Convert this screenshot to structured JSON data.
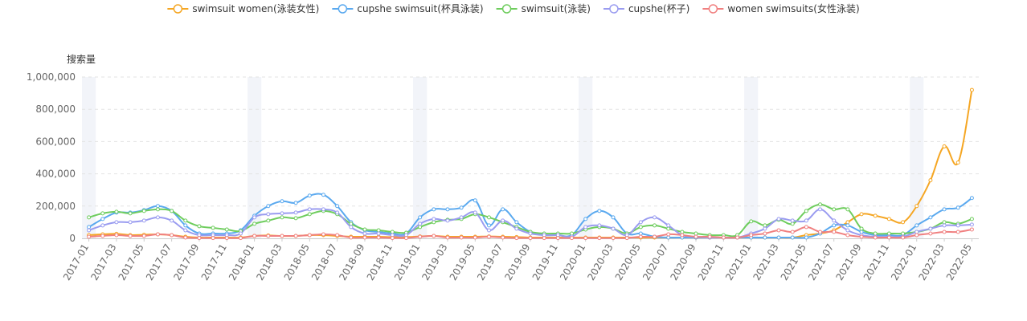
{
  "chart_data": {
    "type": "line",
    "ylabel": "搜索量",
    "ylim": [
      0,
      1000000
    ],
    "y_ticks": [
      "0",
      "200,000",
      "400,000",
      "600,000",
      "800,000",
      "1,000,000"
    ],
    "x_tick_labels": [
      "2017-01",
      "2017-03",
      "2017-05",
      "2017-07",
      "2017-09",
      "2017-11",
      "2018-01",
      "2018-03",
      "2018-05",
      "2018-07",
      "2018-09",
      "2018-11",
      "2019-01",
      "2019-03",
      "2019-05",
      "2019-07",
      "2019-09",
      "2019-11",
      "2020-01",
      "2020-03",
      "2020-05",
      "2020-07",
      "2020-09",
      "2020-11",
      "2021-01",
      "2021-03",
      "2021-05",
      "2021-07",
      "2021-09",
      "2021-11",
      "2022-01",
      "2022-03",
      "2022-05"
    ],
    "legend_position": "top-center",
    "grid": "dashed horizontal",
    "x": [
      "2017-01",
      "2017-02",
      "2017-03",
      "2017-04",
      "2017-05",
      "2017-06",
      "2017-07",
      "2017-08",
      "2017-09",
      "2017-10",
      "2017-11",
      "2017-12",
      "2018-01",
      "2018-02",
      "2018-03",
      "2018-04",
      "2018-05",
      "2018-06",
      "2018-07",
      "2018-08",
      "2018-09",
      "2018-10",
      "2018-11",
      "2018-12",
      "2019-01",
      "2019-02",
      "2019-03",
      "2019-04",
      "2019-05",
      "2019-06",
      "2019-07",
      "2019-08",
      "2019-09",
      "2019-10",
      "2019-11",
      "2019-12",
      "2020-01",
      "2020-02",
      "2020-03",
      "2020-04",
      "2020-05",
      "2020-06",
      "2020-07",
      "2020-08",
      "2020-09",
      "2020-10",
      "2020-11",
      "2020-12",
      "2021-01",
      "2021-02",
      "2021-03",
      "2021-04",
      "2021-05",
      "2021-06",
      "2021-07",
      "2021-08",
      "2021-09",
      "2021-10",
      "2021-11",
      "2021-12",
      "2022-01",
      "2022-02",
      "2022-03",
      "2022-04",
      "2022-05"
    ],
    "series": [
      {
        "name": "swimsuit women(泳装女性)",
        "color": "#f5a623",
        "values": [
          20000,
          25000,
          28000,
          20000,
          22000,
          25000,
          20000,
          10000,
          5000,
          5000,
          5000,
          5000,
          15000,
          18000,
          15000,
          15000,
          20000,
          20000,
          15000,
          10000,
          10000,
          10000,
          8000,
          8000,
          12000,
          15000,
          10000,
          10000,
          10000,
          12000,
          10000,
          8000,
          5000,
          5000,
          5000,
          5000,
          5000,
          5000,
          5000,
          5000,
          5000,
          5000,
          5000,
          5000,
          5000,
          5000,
          5000,
          5000,
          5000,
          5000,
          5000,
          5000,
          20000,
          30000,
          50000,
          100000,
          150000,
          140000,
          120000,
          100000,
          200000,
          360000,
          570000,
          470000,
          920000
        ]
      },
      {
        "name": "cupshe swimsuit(杯具泳装)",
        "color": "#5aa9ef",
        "values": [
          70000,
          120000,
          160000,
          160000,
          175000,
          200000,
          170000,
          80000,
          30000,
          30000,
          30000,
          50000,
          140000,
          200000,
          230000,
          220000,
          265000,
          270000,
          200000,
          100000,
          50000,
          40000,
          30000,
          30000,
          130000,
          180000,
          180000,
          190000,
          235000,
          80000,
          180000,
          100000,
          40000,
          20000,
          20000,
          20000,
          120000,
          170000,
          130000,
          30000,
          30000,
          10000,
          5000,
          5000,
          5000,
          5000,
          5000,
          5000,
          5000,
          5000,
          5000,
          5000,
          5000,
          30000,
          80000,
          80000,
          40000,
          20000,
          20000,
          20000,
          80000,
          130000,
          180000,
          190000,
          250000
        ]
      },
      {
        "name": "swimsuit(泳装)",
        "color": "#6fcd5e",
        "values": [
          130000,
          155000,
          165000,
          155000,
          170000,
          180000,
          170000,
          110000,
          75000,
          65000,
          55000,
          45000,
          90000,
          110000,
          130000,
          125000,
          150000,
          170000,
          150000,
          90000,
          55000,
          50000,
          40000,
          35000,
          70000,
          100000,
          115000,
          120000,
          150000,
          130000,
          100000,
          70000,
          40000,
          30000,
          30000,
          30000,
          55000,
          70000,
          60000,
          30000,
          70000,
          80000,
          60000,
          40000,
          30000,
          20000,
          20000,
          20000,
          105000,
          80000,
          115000,
          90000,
          170000,
          210000,
          180000,
          180000,
          60000,
          30000,
          30000,
          30000,
          40000,
          60000,
          100000,
          90000,
          120000
        ]
      },
      {
        "name": "cupshe(杯子)",
        "color": "#9a9cf0",
        "values": [
          50000,
          80000,
          100000,
          100000,
          110000,
          130000,
          110000,
          50000,
          20000,
          20000,
          20000,
          30000,
          130000,
          150000,
          155000,
          160000,
          180000,
          180000,
          160000,
          70000,
          30000,
          30000,
          20000,
          20000,
          90000,
          120000,
          110000,
          130000,
          160000,
          50000,
          110000,
          60000,
          30000,
          20000,
          20000,
          10000,
          70000,
          80000,
          60000,
          20000,
          100000,
          130000,
          80000,
          20000,
          10000,
          5000,
          5000,
          5000,
          30000,
          60000,
          120000,
          110000,
          110000,
          180000,
          110000,
          50000,
          20000,
          10000,
          10000,
          10000,
          40000,
          60000,
          80000,
          80000,
          85000
        ]
      },
      {
        "name": "women swimsuits(女性泳装)",
        "color": "#f08080",
        "values": [
          10000,
          15000,
          20000,
          15000,
          15000,
          25000,
          20000,
          5000,
          2000,
          2000,
          2000,
          2000,
          15000,
          15000,
          15000,
          15000,
          20000,
          25000,
          20000,
          5000,
          5000,
          5000,
          2000,
          2000,
          10000,
          15000,
          5000,
          5000,
          5000,
          10000,
          5000,
          2000,
          2000,
          2000,
          2000,
          2000,
          2000,
          2000,
          2000,
          2000,
          10000,
          10000,
          25000,
          20000,
          10000,
          10000,
          5000,
          5000,
          20000,
          30000,
          50000,
          40000,
          70000,
          40000,
          40000,
          20000,
          10000,
          5000,
          5000,
          5000,
          20000,
          30000,
          40000,
          40000,
          55000
        ]
      }
    ]
  }
}
